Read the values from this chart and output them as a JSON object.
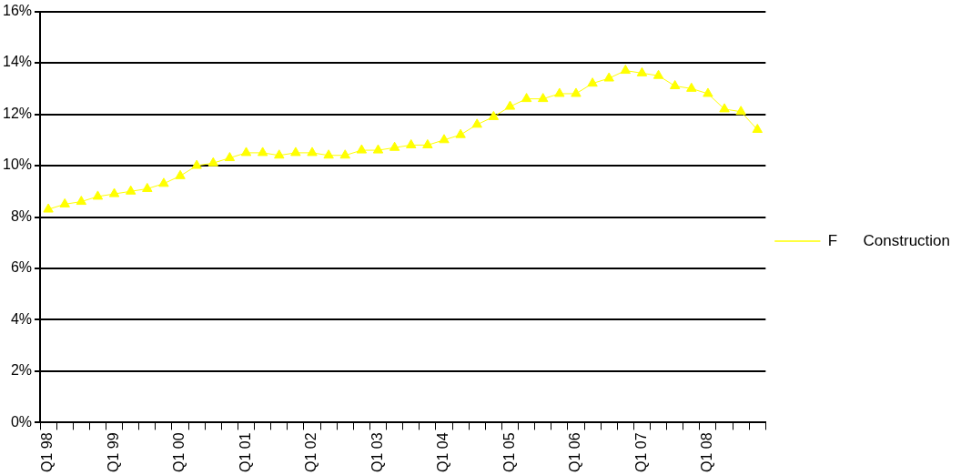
{
  "chart_data": {
    "type": "line",
    "categories": [
      "Q1 98",
      null,
      null,
      null,
      "Q1 99",
      null,
      null,
      null,
      "Q1 00",
      null,
      null,
      null,
      "Q1 01",
      null,
      null,
      null,
      "Q1 02",
      null,
      null,
      null,
      "Q1 03",
      null,
      null,
      null,
      "Q1 04",
      null,
      null,
      null,
      "Q1 05",
      null,
      null,
      null,
      "Q1 06",
      null,
      null,
      null,
      "Q1 07",
      null,
      null,
      null,
      "Q1 08",
      null,
      null,
      null
    ],
    "series": [
      {
        "name": "F      Construction",
        "color": "#ffff00",
        "values": [
          8.3,
          8.5,
          8.6,
          8.8,
          8.9,
          9.0,
          9.1,
          9.3,
          9.6,
          10.0,
          10.1,
          10.3,
          10.5,
          10.5,
          10.4,
          10.5,
          10.5,
          10.4,
          10.4,
          10.6,
          10.6,
          10.7,
          10.8,
          10.8,
          11.0,
          11.2,
          11.6,
          11.9,
          12.3,
          12.6,
          12.6,
          12.8,
          12.8,
          13.2,
          13.4,
          13.7,
          13.6,
          13.5,
          13.1,
          13.0,
          12.8,
          12.2,
          12.1,
          11.4
        ]
      }
    ],
    "ylim": [
      0,
      16
    ],
    "yticks": [
      {
        "value": 0,
        "label": "0%"
      },
      {
        "value": 2,
        "label": "2%"
      },
      {
        "value": 4,
        "label": "4%"
      },
      {
        "value": 6,
        "label": "6%"
      },
      {
        "value": 8,
        "label": "8%"
      },
      {
        "value": 10,
        "label": "10%"
      },
      {
        "value": 12,
        "label": "12%"
      },
      {
        "value": 14,
        "label": "14%"
      },
      {
        "value": 16,
        "label": "16%"
      }
    ],
    "grid": "y",
    "legend": "right",
    "marker": "triangle",
    "line_style": "solid"
  }
}
